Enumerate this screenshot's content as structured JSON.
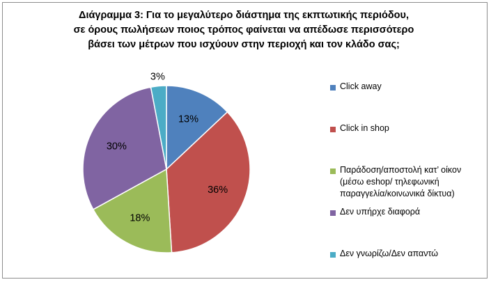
{
  "chart_data": {
    "type": "pie",
    "title_lines": [
      "Διάγραμμα 3:  Για το μεγαλύτερο διάστημα της εκπτωτικής περιόδου,",
      "σε όρους πωλήσεων ποιος τρόπος φαίνεται να απέδωσε περισσότερο",
      "βάσει των μέτρων που ισχύουν στην περιοχή και τον κλάδο σας;"
    ],
    "categories": [
      "Click away",
      "Click in shop",
      "Παράδοση/αποστολή κατ’ οίκον (μέσω eshop/ τηλεφωνική παραγγελία/κοινωνικά δίκτυα)",
      "Δεν υπήρχε διαφορά",
      "Δεν γνωρίζω/Δεν απαντώ"
    ],
    "values": [
      13,
      36,
      18,
      30,
      3
    ],
    "data_labels": [
      "13%",
      "36%",
      "18%",
      "30%",
      "3%"
    ],
    "colors": [
      "#4f81bd",
      "#c0504d",
      "#9bbb59",
      "#8064a2",
      "#4bacc6"
    ],
    "legend_position": "right",
    "start_angle_deg": 0,
    "direction": "clockwise"
  }
}
